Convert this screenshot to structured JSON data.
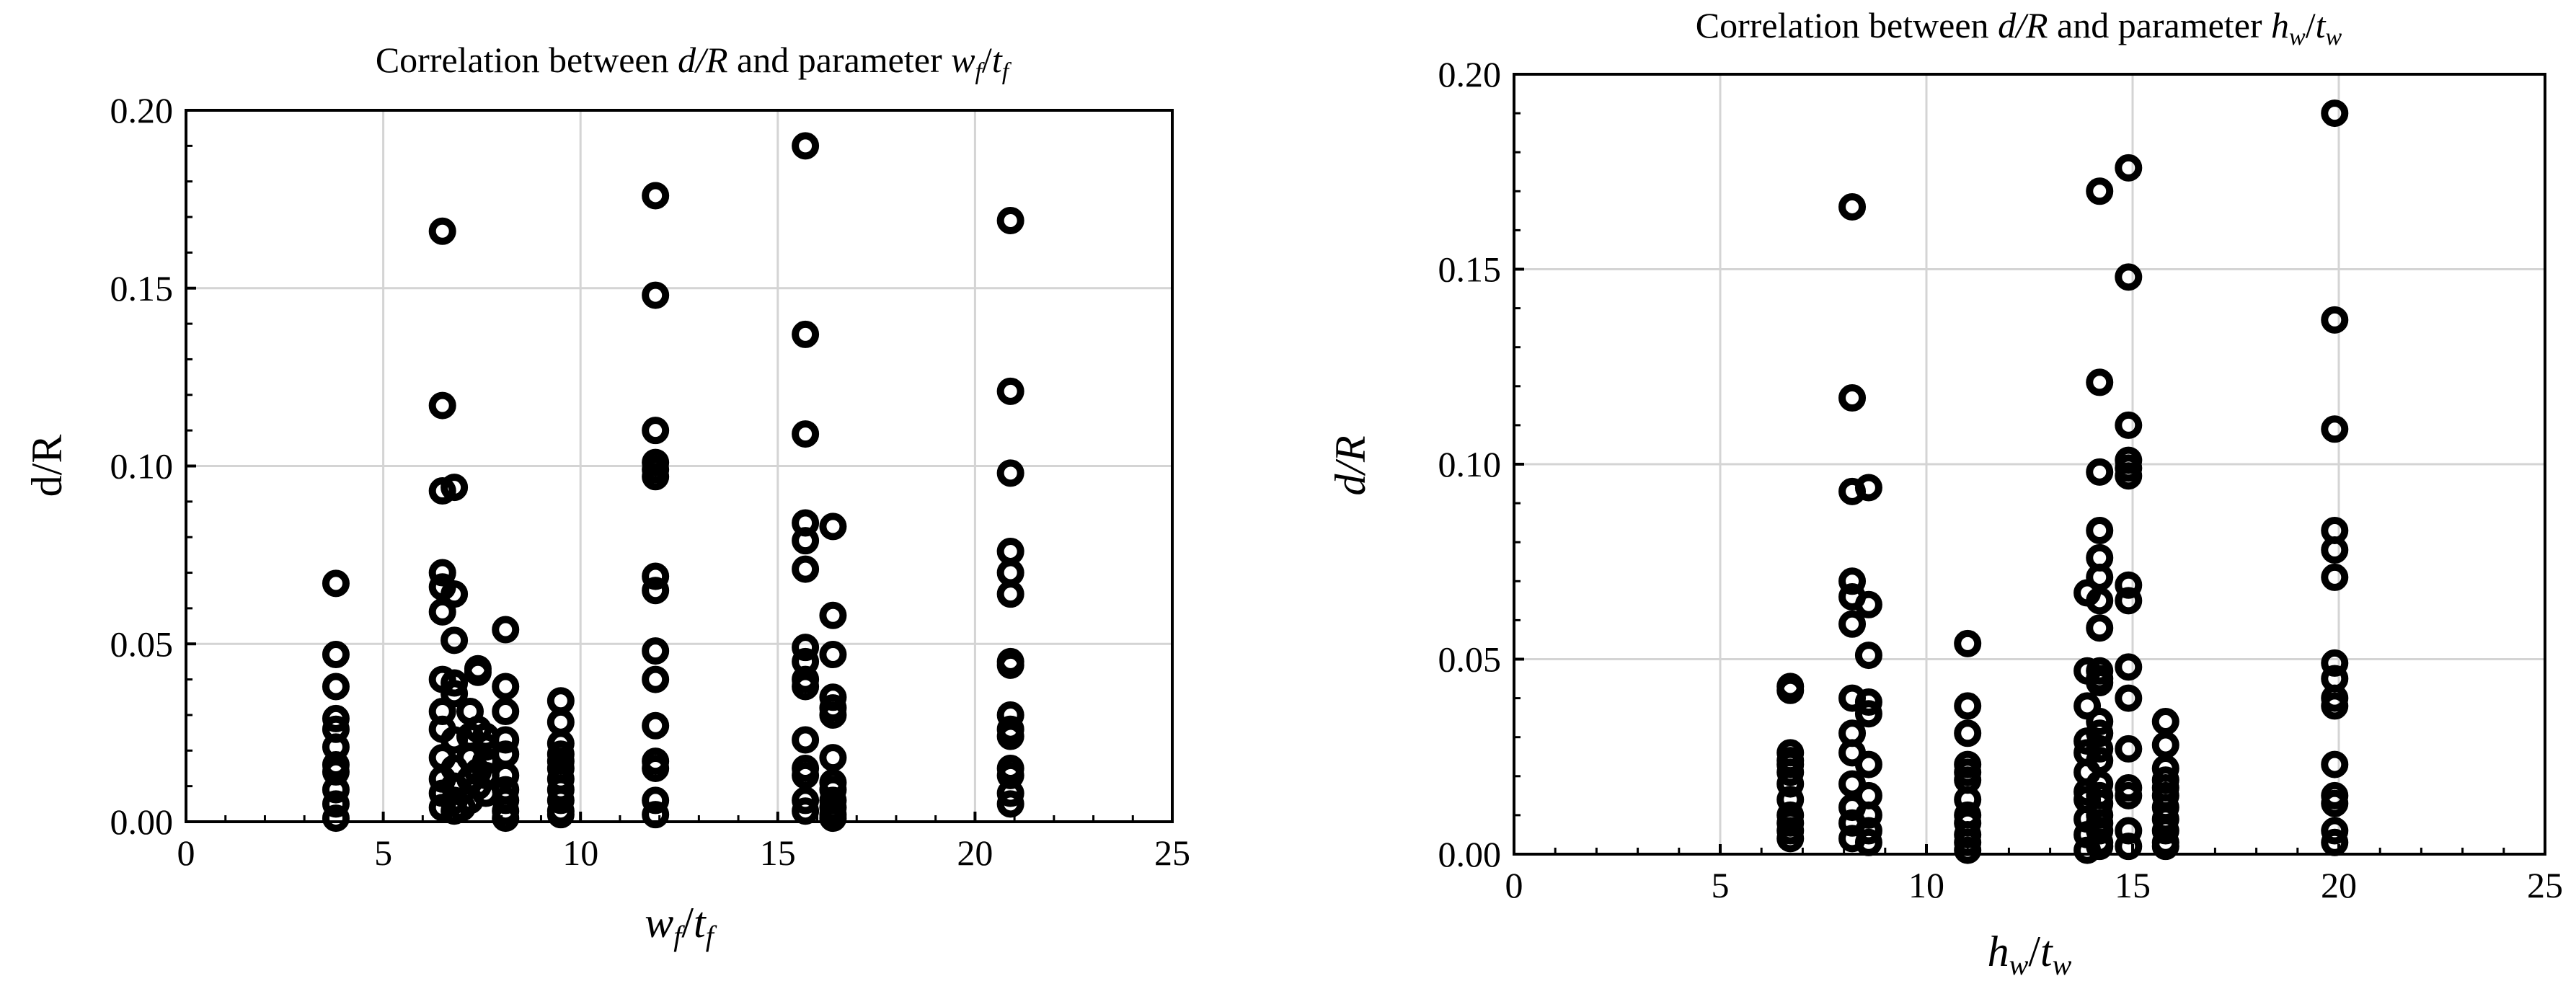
{
  "chart_data": [
    {
      "type": "scatter",
      "title": {
        "pre": "Correlation between ",
        "var": "d/R",
        "mid": " and parameter ",
        "param": "w",
        "sub": "f",
        "slash": "/",
        "param2": "t",
        "sub2": "f"
      },
      "xlabel": {
        "main": "w",
        "sub": "f",
        "slash": "/",
        "main2": "t",
        "sub2": "f"
      },
      "ylabel": "d/R",
      "xlim": [
        0,
        25
      ],
      "ylim": [
        0,
        0.2
      ],
      "xticks": [
        "0",
        "5",
        "10",
        "15",
        "20",
        "25"
      ],
      "yticks": [
        "0.00",
        "0.05",
        "0.10",
        "0.15",
        "0.20"
      ],
      "grid": true,
      "marker": "open-circle",
      "points": [
        [
          3.8,
          0.067
        ],
        [
          3.8,
          0.047
        ],
        [
          3.8,
          0.038
        ],
        [
          3.8,
          0.029
        ],
        [
          3.8,
          0.026
        ],
        [
          3.8,
          0.021
        ],
        [
          3.8,
          0.016
        ],
        [
          3.8,
          0.014
        ],
        [
          3.8,
          0.009
        ],
        [
          3.8,
          0.005
        ],
        [
          3.8,
          0.001
        ],
        [
          6.5,
          0.166
        ],
        [
          6.5,
          0.117
        ],
        [
          6.5,
          0.093
        ],
        [
          6.8,
          0.094
        ],
        [
          6.5,
          0.07
        ],
        [
          6.5,
          0.066
        ],
        [
          6.8,
          0.064
        ],
        [
          6.5,
          0.059
        ],
        [
          6.8,
          0.051
        ],
        [
          6.5,
          0.04
        ],
        [
          6.8,
          0.039
        ],
        [
          6.5,
          0.031
        ],
        [
          6.8,
          0.036
        ],
        [
          6.5,
          0.026
        ],
        [
          6.8,
          0.023
        ],
        [
          6.5,
          0.018
        ],
        [
          6.8,
          0.015
        ],
        [
          6.5,
          0.012
        ],
        [
          6.8,
          0.01
        ],
        [
          6.5,
          0.008
        ],
        [
          6.8,
          0.006
        ],
        [
          6.5,
          0.004
        ],
        [
          6.8,
          0.003
        ],
        [
          7.0,
          0.004
        ],
        [
          7.2,
          0.031
        ],
        [
          7.2,
          0.024
        ],
        [
          7.2,
          0.018
        ],
        [
          7.2,
          0.012
        ],
        [
          7.2,
          0.006
        ],
        [
          7.4,
          0.043
        ],
        [
          7.4,
          0.042
        ],
        [
          7.4,
          0.026
        ],
        [
          7.4,
          0.014
        ],
        [
          7.4,
          0.01
        ],
        [
          7.6,
          0.024
        ],
        [
          7.6,
          0.021
        ],
        [
          7.6,
          0.017
        ],
        [
          7.6,
          0.013
        ],
        [
          7.6,
          0.008
        ],
        [
          8.1,
          0.054
        ],
        [
          8.1,
          0.038
        ],
        [
          8.1,
          0.031
        ],
        [
          8.1,
          0.023
        ],
        [
          8.1,
          0.019
        ],
        [
          8.1,
          0.013
        ],
        [
          8.1,
          0.009
        ],
        [
          8.1,
          0.006
        ],
        [
          8.1,
          0.003
        ],
        [
          8.1,
          0.001
        ],
        [
          9.5,
          0.034
        ],
        [
          9.5,
          0.028
        ],
        [
          9.5,
          0.022
        ],
        [
          9.5,
          0.019
        ],
        [
          9.5,
          0.017
        ],
        [
          9.5,
          0.015
        ],
        [
          9.5,
          0.012
        ],
        [
          9.5,
          0.009
        ],
        [
          9.5,
          0.006
        ],
        [
          9.5,
          0.003
        ],
        [
          9.5,
          0.002
        ],
        [
          11.9,
          0.176
        ],
        [
          11.9,
          0.148
        ],
        [
          11.9,
          0.11
        ],
        [
          11.9,
          0.101
        ],
        [
          11.9,
          0.099
        ],
        [
          11.9,
          0.097
        ],
        [
          11.9,
          0.069
        ],
        [
          11.9,
          0.065
        ],
        [
          11.9,
          0.048
        ],
        [
          11.9,
          0.04
        ],
        [
          11.9,
          0.027
        ],
        [
          11.9,
          0.017
        ],
        [
          11.9,
          0.015
        ],
        [
          11.9,
          0.006
        ],
        [
          11.9,
          0.002
        ],
        [
          15.7,
          0.19
        ],
        [
          15.7,
          0.137
        ],
        [
          15.7,
          0.109
        ],
        [
          15.7,
          0.084
        ],
        [
          15.7,
          0.079
        ],
        [
          15.7,
          0.071
        ],
        [
          15.7,
          0.049
        ],
        [
          15.7,
          0.045
        ],
        [
          15.7,
          0.04
        ],
        [
          15.7,
          0.038
        ],
        [
          15.7,
          0.023
        ],
        [
          15.7,
          0.015
        ],
        [
          15.7,
          0.013
        ],
        [
          15.7,
          0.006
        ],
        [
          15.7,
          0.003
        ],
        [
          16.4,
          0.083
        ],
        [
          16.4,
          0.058
        ],
        [
          16.4,
          0.047
        ],
        [
          16.4,
          0.035
        ],
        [
          16.4,
          0.032
        ],
        [
          16.4,
          0.03
        ],
        [
          16.4,
          0.018
        ],
        [
          16.4,
          0.011
        ],
        [
          16.4,
          0.009
        ],
        [
          16.4,
          0.006
        ],
        [
          16.4,
          0.004
        ],
        [
          16.4,
          0.002
        ],
        [
          16.4,
          0.001
        ],
        [
          20.9,
          0.169
        ],
        [
          20.9,
          0.121
        ],
        [
          20.9,
          0.098
        ],
        [
          20.9,
          0.076
        ],
        [
          20.9,
          0.07
        ],
        [
          20.9,
          0.064
        ],
        [
          20.9,
          0.045
        ],
        [
          20.9,
          0.044
        ],
        [
          20.9,
          0.03
        ],
        [
          20.9,
          0.026
        ],
        [
          20.9,
          0.024
        ],
        [
          20.9,
          0.015
        ],
        [
          20.9,
          0.013
        ],
        [
          20.9,
          0.008
        ],
        [
          20.9,
          0.005
        ]
      ]
    },
    {
      "type": "scatter",
      "title": {
        "pre": "Correlation between ",
        "var": "d/R",
        "mid": " and parameter ",
        "param": "h",
        "sub": "w",
        "slash": "/",
        "param2": "t",
        "sub2": "w"
      },
      "xlabel": {
        "main": "h",
        "sub": "w",
        "slash": "/",
        "main2": "t",
        "sub2": "w"
      },
      "ylabel": "d/R",
      "xlim": [
        0,
        25
      ],
      "ylim": [
        0,
        0.2
      ],
      "xticks": [
        "0",
        "5",
        "10",
        "15",
        "20",
        "25"
      ],
      "yticks": [
        "0.00",
        "0.05",
        "0.10",
        "0.15",
        "0.20"
      ],
      "grid": true,
      "marker": "open-circle",
      "points": [
        [
          6.7,
          0.043
        ],
        [
          6.7,
          0.042
        ],
        [
          6.7,
          0.026
        ],
        [
          6.7,
          0.024
        ],
        [
          6.7,
          0.023
        ],
        [
          6.7,
          0.021
        ],
        [
          6.7,
          0.018
        ],
        [
          6.7,
          0.014
        ],
        [
          6.7,
          0.01
        ],
        [
          6.7,
          0.008
        ],
        [
          6.7,
          0.006
        ],
        [
          6.7,
          0.004
        ],
        [
          8.2,
          0.166
        ],
        [
          8.2,
          0.117
        ],
        [
          8.2,
          0.093
        ],
        [
          8.6,
          0.094
        ],
        [
          8.2,
          0.07
        ],
        [
          8.2,
          0.066
        ],
        [
          8.6,
          0.064
        ],
        [
          8.2,
          0.059
        ],
        [
          8.6,
          0.051
        ],
        [
          8.2,
          0.04
        ],
        [
          8.6,
          0.039
        ],
        [
          8.2,
          0.031
        ],
        [
          8.6,
          0.036
        ],
        [
          8.2,
          0.026
        ],
        [
          8.6,
          0.023
        ],
        [
          8.2,
          0.018
        ],
        [
          8.6,
          0.015
        ],
        [
          8.2,
          0.012
        ],
        [
          8.6,
          0.01
        ],
        [
          8.2,
          0.008
        ],
        [
          8.6,
          0.006
        ],
        [
          8.2,
          0.004
        ],
        [
          8.6,
          0.003
        ],
        [
          11.0,
          0.054
        ],
        [
          11.0,
          0.038
        ],
        [
          11.0,
          0.031
        ],
        [
          11.0,
          0.023
        ],
        [
          11.0,
          0.021
        ],
        [
          11.0,
          0.019
        ],
        [
          11.0,
          0.014
        ],
        [
          11.0,
          0.01
        ],
        [
          11.0,
          0.008
        ],
        [
          11.0,
          0.005
        ],
        [
          11.0,
          0.003
        ],
        [
          11.0,
          0.001
        ],
        [
          13.9,
          0.067
        ],
        [
          13.9,
          0.047
        ],
        [
          13.9,
          0.038
        ],
        [
          13.9,
          0.029
        ],
        [
          13.9,
          0.026
        ],
        [
          13.9,
          0.021
        ],
        [
          13.9,
          0.016
        ],
        [
          13.9,
          0.014
        ],
        [
          13.9,
          0.009
        ],
        [
          13.9,
          0.005
        ],
        [
          13.9,
          0.001
        ],
        [
          14.2,
          0.17
        ],
        [
          14.2,
          0.121
        ],
        [
          14.2,
          0.098
        ],
        [
          14.2,
          0.083
        ],
        [
          14.2,
          0.076
        ],
        [
          14.2,
          0.071
        ],
        [
          14.2,
          0.065
        ],
        [
          14.2,
          0.058
        ],
        [
          14.2,
          0.047
        ],
        [
          14.2,
          0.045
        ],
        [
          14.2,
          0.044
        ],
        [
          14.2,
          0.034
        ],
        [
          14.2,
          0.031
        ],
        [
          14.2,
          0.027
        ],
        [
          14.2,
          0.024
        ],
        [
          14.2,
          0.018
        ],
        [
          14.2,
          0.015
        ],
        [
          14.2,
          0.013
        ],
        [
          14.2,
          0.01
        ],
        [
          14.2,
          0.008
        ],
        [
          14.2,
          0.006
        ],
        [
          14.2,
          0.003
        ],
        [
          14.2,
          0.002
        ],
        [
          14.9,
          0.176
        ],
        [
          14.9,
          0.148
        ],
        [
          14.9,
          0.11
        ],
        [
          14.9,
          0.101
        ],
        [
          14.9,
          0.099
        ],
        [
          14.9,
          0.097
        ],
        [
          14.9,
          0.069
        ],
        [
          14.9,
          0.065
        ],
        [
          14.9,
          0.048
        ],
        [
          14.9,
          0.04
        ],
        [
          14.9,
          0.027
        ],
        [
          14.9,
          0.017
        ],
        [
          14.9,
          0.015
        ],
        [
          14.9,
          0.006
        ],
        [
          14.9,
          0.002
        ],
        [
          15.8,
          0.034
        ],
        [
          15.8,
          0.028
        ],
        [
          15.8,
          0.022
        ],
        [
          15.8,
          0.019
        ],
        [
          15.8,
          0.017
        ],
        [
          15.8,
          0.015
        ],
        [
          15.8,
          0.012
        ],
        [
          15.8,
          0.009
        ],
        [
          15.8,
          0.006
        ],
        [
          15.8,
          0.003
        ],
        [
          15.8,
          0.002
        ],
        [
          19.9,
          0.19
        ],
        [
          19.9,
          0.137
        ],
        [
          19.9,
          0.109
        ],
        [
          19.9,
          0.083
        ],
        [
          19.9,
          0.078
        ],
        [
          19.9,
          0.071
        ],
        [
          19.9,
          0.049
        ],
        [
          19.9,
          0.045
        ],
        [
          19.9,
          0.04
        ],
        [
          19.9,
          0.038
        ],
        [
          19.9,
          0.023
        ],
        [
          19.9,
          0.015
        ],
        [
          19.9,
          0.013
        ],
        [
          19.9,
          0.006
        ],
        [
          19.9,
          0.003
        ]
      ]
    }
  ]
}
